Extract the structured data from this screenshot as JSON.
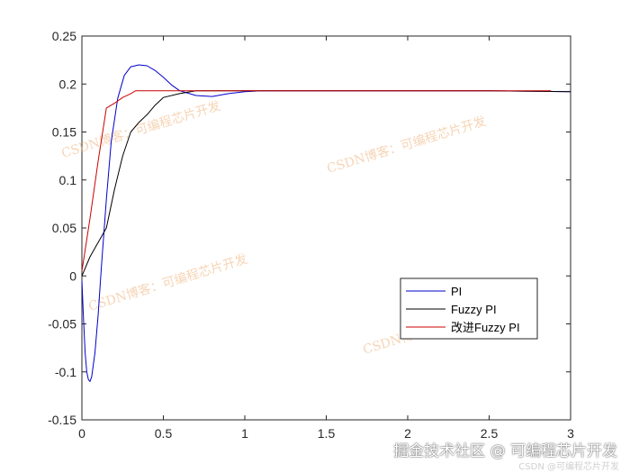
{
  "chart_data": {
    "type": "line",
    "xlim": [
      0,
      3
    ],
    "ylim": [
      -0.15,
      0.25
    ],
    "xticks": [
      "0",
      "0.5",
      "1",
      "1.5",
      "2",
      "2.5",
      "3"
    ],
    "yticks": [
      "-0.15",
      "-0.1",
      "-0.05",
      "0",
      "0.05",
      "0.1",
      "0.15",
      "0.2",
      "0.25"
    ],
    "grid": false,
    "legend_position": "lower-right",
    "series": [
      {
        "name": "PI",
        "color": "#0000cc",
        "x": [
          0,
          0.01,
          0.02,
          0.03,
          0.04,
          0.05,
          0.06,
          0.08,
          0.1,
          0.12,
          0.15,
          0.18,
          0.22,
          0.26,
          0.3,
          0.35,
          0.4,
          0.45,
          0.5,
          0.55,
          0.6,
          0.7,
          0.8,
          0.9,
          1.0,
          1.1,
          1.5,
          2.0,
          2.5,
          3.0
        ],
        "y": [
          -0.005,
          -0.045,
          -0.08,
          -0.1,
          -0.108,
          -0.11,
          -0.105,
          -0.08,
          -0.04,
          0.01,
          0.08,
          0.14,
          0.185,
          0.209,
          0.218,
          0.22,
          0.219,
          0.214,
          0.207,
          0.199,
          0.193,
          0.188,
          0.187,
          0.19,
          0.192,
          0.193,
          0.193,
          0.193,
          0.193,
          0.192
        ]
      },
      {
        "name": "Fuzzy PI",
        "color": "#000000",
        "x": [
          0,
          0.05,
          0.1,
          0.15,
          0.2,
          0.25,
          0.3,
          0.35,
          0.4,
          0.45,
          0.5,
          0.6,
          0.7,
          0.8,
          0.9,
          1.0,
          1.5,
          2.0,
          2.5,
          3.0
        ],
        "y": [
          0.0,
          0.02,
          0.035,
          0.05,
          0.09,
          0.125,
          0.15,
          0.16,
          0.168,
          0.178,
          0.186,
          0.19,
          0.193,
          0.193,
          0.193,
          0.193,
          0.193,
          0.193,
          0.193,
          0.192
        ]
      },
      {
        "name": "改进Fuzzy PI",
        "color": "#cc0000",
        "x": [
          0,
          0.05,
          0.1,
          0.15,
          0.2,
          0.25,
          0.3,
          0.33,
          0.5,
          1.0,
          1.5,
          2.0,
          2.5,
          2.88
        ],
        "y": [
          0.005,
          0.06,
          0.12,
          0.175,
          0.18,
          0.186,
          0.19,
          0.193,
          0.193,
          0.193,
          0.193,
          0.193,
          0.193,
          0.193
        ]
      }
    ],
    "watermarks": [
      "CSDN博客：可编程芯片开发",
      "CSDN博客：可编程芯片开发",
      "CSDN博客：可编程芯片开发",
      "CSDN博客：可编程芯片开发"
    ]
  },
  "footer": {
    "main": "掘金技术社区 @ 可编程芯片开发",
    "sub": "CSDN @可编程芯片开发"
  }
}
